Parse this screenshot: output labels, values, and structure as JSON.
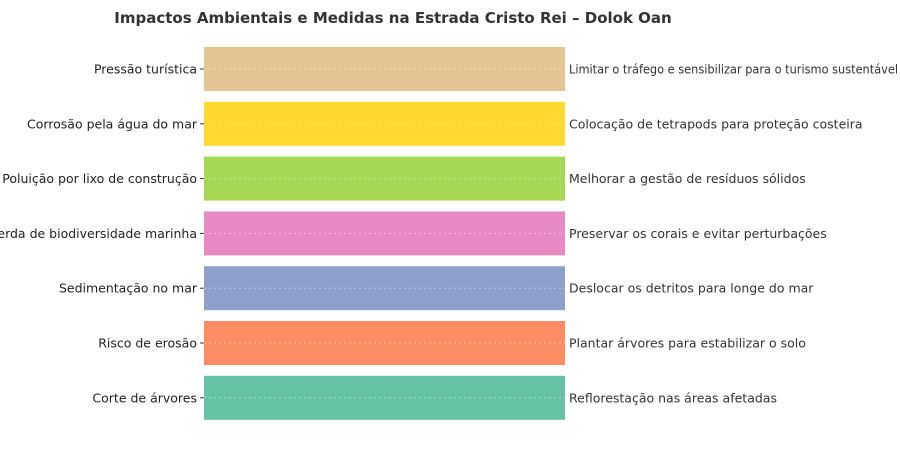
{
  "chart_data": {
    "type": "bar",
    "orientation": "horizontal",
    "title": "Impactos Ambientais e Medidas na Estrada Cristo Rei – Dolok Oan",
    "xlabel": "",
    "ylabel": "",
    "xlim": [
      0,
      1
    ],
    "grid": true,
    "categories": [
      "Pressão turística",
      "Corrosão pela água do mar",
      "Poluição por lixo de construção",
      "Perda de biodiversidade marinha",
      "Sedimentação no mar",
      "Risco de erosão",
      "Corte de árvores"
    ],
    "values": [
      1,
      1,
      1,
      1,
      1,
      1,
      1
    ],
    "annotations": [
      "Limitar o tráfego e sensibilizar para o turismo sustentável",
      "Colocação de tetrapods para proteção costeira",
      "Melhorar a gestão de resíduos sólidos",
      "Preservar os corais e evitar perturbações",
      "Deslocar os detritos para longe do mar",
      "Plantar árvores para estabilizar o solo",
      "Reflorestação nas áreas afetadas"
    ],
    "colors": [
      "#e5c494",
      "#ffd92f",
      "#a6d854",
      "#e78ac3",
      "#8da0cb",
      "#fc8d62",
      "#66c2a5"
    ]
  }
}
